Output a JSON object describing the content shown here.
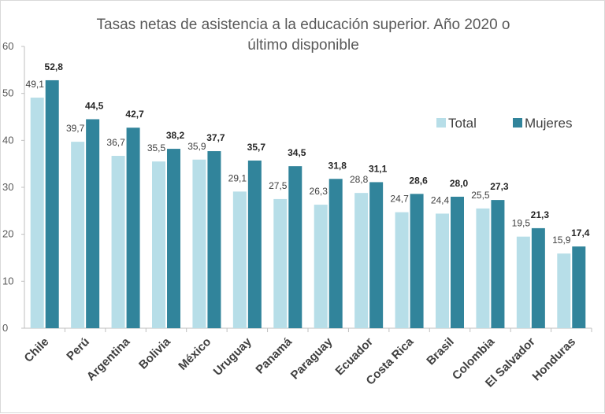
{
  "chart_data": {
    "type": "bar",
    "title_lines": [
      "Tasas netas de asistencia a la educación superior. Año 2020 o",
      "último disponible"
    ],
    "categories": [
      "Chile",
      "Perú",
      "Argentina",
      "Bolivia",
      "México",
      "Uruguay",
      "Panamá",
      "Paraguay",
      "Ecuador",
      "Costa Rica",
      "Brasil",
      "Colombia",
      "El Salvador",
      "Honduras"
    ],
    "series": [
      {
        "name": "Total",
        "color": "#b7dee8",
        "values": [
          49.1,
          39.7,
          36.7,
          35.5,
          35.9,
          29.1,
          27.5,
          26.3,
          28.8,
          24.7,
          24.4,
          25.5,
          19.5,
          15.9
        ],
        "labels": [
          "49,1",
          "39,7",
          "36,7",
          "35,5",
          "35,9",
          "29,1",
          "27,5",
          "26,3",
          "28,8",
          "24,7",
          "24,4",
          "25,5",
          "19,5",
          "15,9"
        ]
      },
      {
        "name": "Mujeres",
        "color": "#31849b",
        "values": [
          52.8,
          44.5,
          42.7,
          38.2,
          37.7,
          35.7,
          34.5,
          31.8,
          31.1,
          28.6,
          28.0,
          27.3,
          21.3,
          17.4
        ],
        "labels": [
          "52,8",
          "44,5",
          "42,7",
          "38,2",
          "37,7",
          "35,7",
          "34,5",
          "31,8",
          "31,1",
          "28,6",
          "28,0",
          "27,3",
          "21,3",
          "17,4"
        ]
      }
    ],
    "y_ticks": [
      "0",
      "10",
      "20",
      "30",
      "40",
      "50",
      "60"
    ],
    "ylim": [
      0,
      60
    ],
    "xlabel": "",
    "ylabel": "",
    "legend_position": "top-right",
    "grid": false,
    "axis_color": "#bfbfbf"
  }
}
